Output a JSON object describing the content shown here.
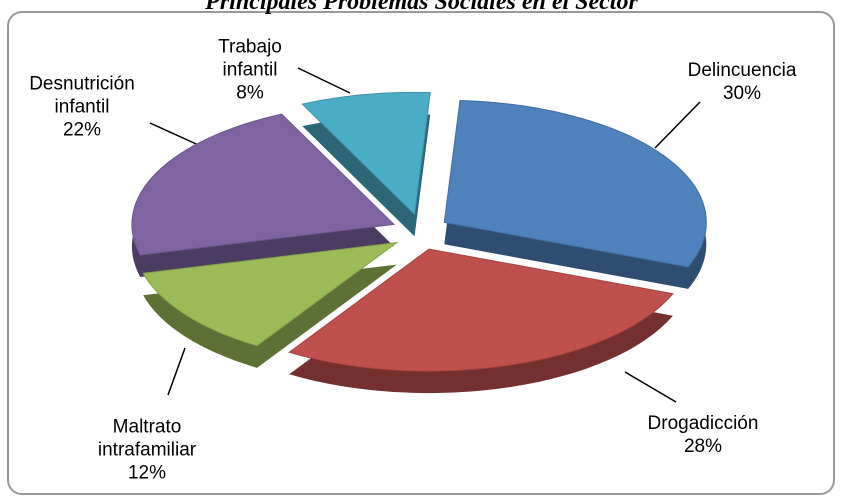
{
  "chart_data": {
    "type": "pie",
    "title": "Principales Problemas Sociales en el Sector",
    "categories": [
      "Delincuencia",
      "Drogadicción",
      "Maltrato intrafamiliar",
      "Desnutrición infantil",
      "Trabajo infantil"
    ],
    "values": [
      30,
      28,
      12,
      22,
      8
    ],
    "value_labels": [
      "30%",
      "28%",
      "12%",
      "22%",
      "8%"
    ],
    "colors": [
      "#4f81bd",
      "#c0504d",
      "#9bbb59",
      "#8064a2",
      "#4bacc6"
    ]
  }
}
